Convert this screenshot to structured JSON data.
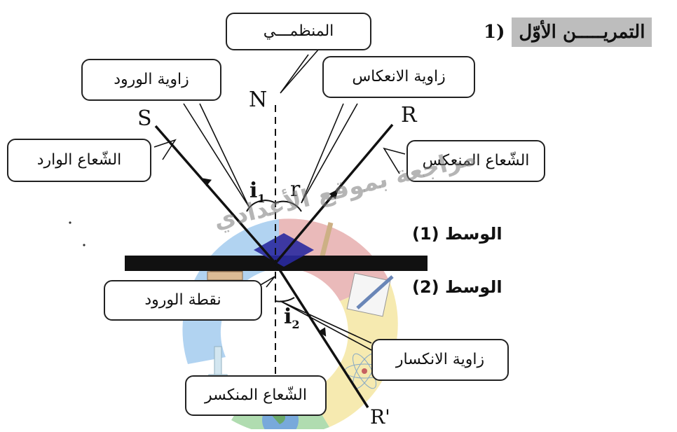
{
  "title": {
    "text": "التمريـــــن الأوّل",
    "number": "1)"
  },
  "letters": {
    "S": "S",
    "N": "N",
    "R": "R",
    "R_prime": "R'",
    "i1": "i",
    "i1_sub": "1",
    "r": "r",
    "i2": "i",
    "i2_sub": "2"
  },
  "labels": {
    "normal": "المنظمـــي",
    "incidence_angle": "زاوية الورود",
    "reflection_angle": "زاوية الانعكاس",
    "incident_ray": "الشّعاع الوارد",
    "reflected_ray": "الشّعاع المنعكس",
    "incidence_point": "نقطة الورود",
    "refraction_angle": "زاوية الانكسار",
    "refracted_ray": "الشّعاع المنكسر",
    "medium1": "الوسط (1)",
    "medium2": "الوسط (2)"
  },
  "watermark": "مراجعة بموقع الأعدادي",
  "colors": {
    "title_bg": "#bdbdbd",
    "interface": "#111111",
    "ray": "#111111",
    "logo_red": "#e8b3b3",
    "logo_blue": "#a9cff0",
    "logo_yellow": "#f6e8a8",
    "logo_green": "#a8d9a8",
    "diamond": "#2a2aa0"
  },
  "icons": [
    "book-stack-icon",
    "pencil-paper-icon",
    "atom-icon",
    "globe-icon",
    "flask-icon"
  ]
}
